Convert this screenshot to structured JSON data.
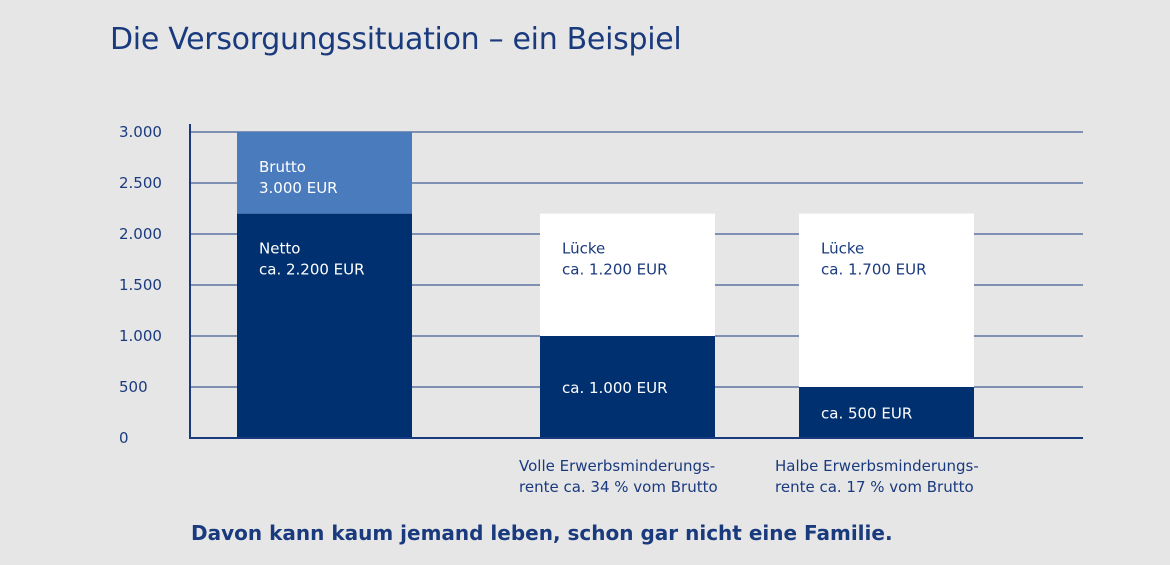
{
  "title": "Die Versorgungssituation – ein Beispiel",
  "colors": {
    "navy": "#00306f",
    "mid_blue": "#4a7bbd",
    "white": "#ffffff",
    "text": "#1a3a7e",
    "axis": "#1a3a7e"
  },
  "chart_data": {
    "type": "bar",
    "stacked": true,
    "ylim": [
      0,
      3000
    ],
    "yticks": [
      0,
      500,
      1000,
      1500,
      2000,
      2500,
      3000
    ],
    "ytick_labels": [
      "0",
      "500",
      "1.000",
      "1.500",
      "2.000",
      "2.500",
      "3.000"
    ],
    "grid": true,
    "bars": [
      {
        "id": "gehalt",
        "segments": [
          {
            "value": 2200,
            "color": "navy",
            "label_lines": [
              "Netto",
              "ca. 2.200 EUR"
            ],
            "label_color": "white"
          },
          {
            "value": 800,
            "color": "mid_blue",
            "label_lines": [
              "Brutto",
              "3.000 EUR"
            ],
            "label_color": "white"
          }
        ]
      },
      {
        "id": "volle-erwerbsminderungsrente",
        "segments": [
          {
            "value": 1000,
            "color": "navy",
            "label_lines": [
              "ca. 1.000 EUR"
            ],
            "label_color": "white"
          },
          {
            "value": 1200,
            "color": "white",
            "label_lines": [
              "Lücke",
              "ca. 1.200 EUR"
            ],
            "label_color": "text"
          }
        ]
      },
      {
        "id": "halbe-erwerbsminderungsrente",
        "segments": [
          {
            "value": 500,
            "color": "navy",
            "label_lines": [
              "ca. 500 EUR"
            ],
            "label_color": "white"
          },
          {
            "value": 1700,
            "color": "white",
            "label_lines": [
              "Lücke",
              "ca. 1.700 EUR"
            ],
            "label_color": "text"
          }
        ]
      }
    ]
  },
  "captions": {
    "full": {
      "line1": "Volle Erwerbsminderungs-",
      "line2": "rente ca. 34 % vom Brutto"
    },
    "half": {
      "line1": "Halbe Erwerbsminderungs-",
      "line2": "rente ca. 17 % vom Brutto"
    }
  },
  "footer": "Davon kann kaum jemand leben, schon gar nicht eine Familie."
}
